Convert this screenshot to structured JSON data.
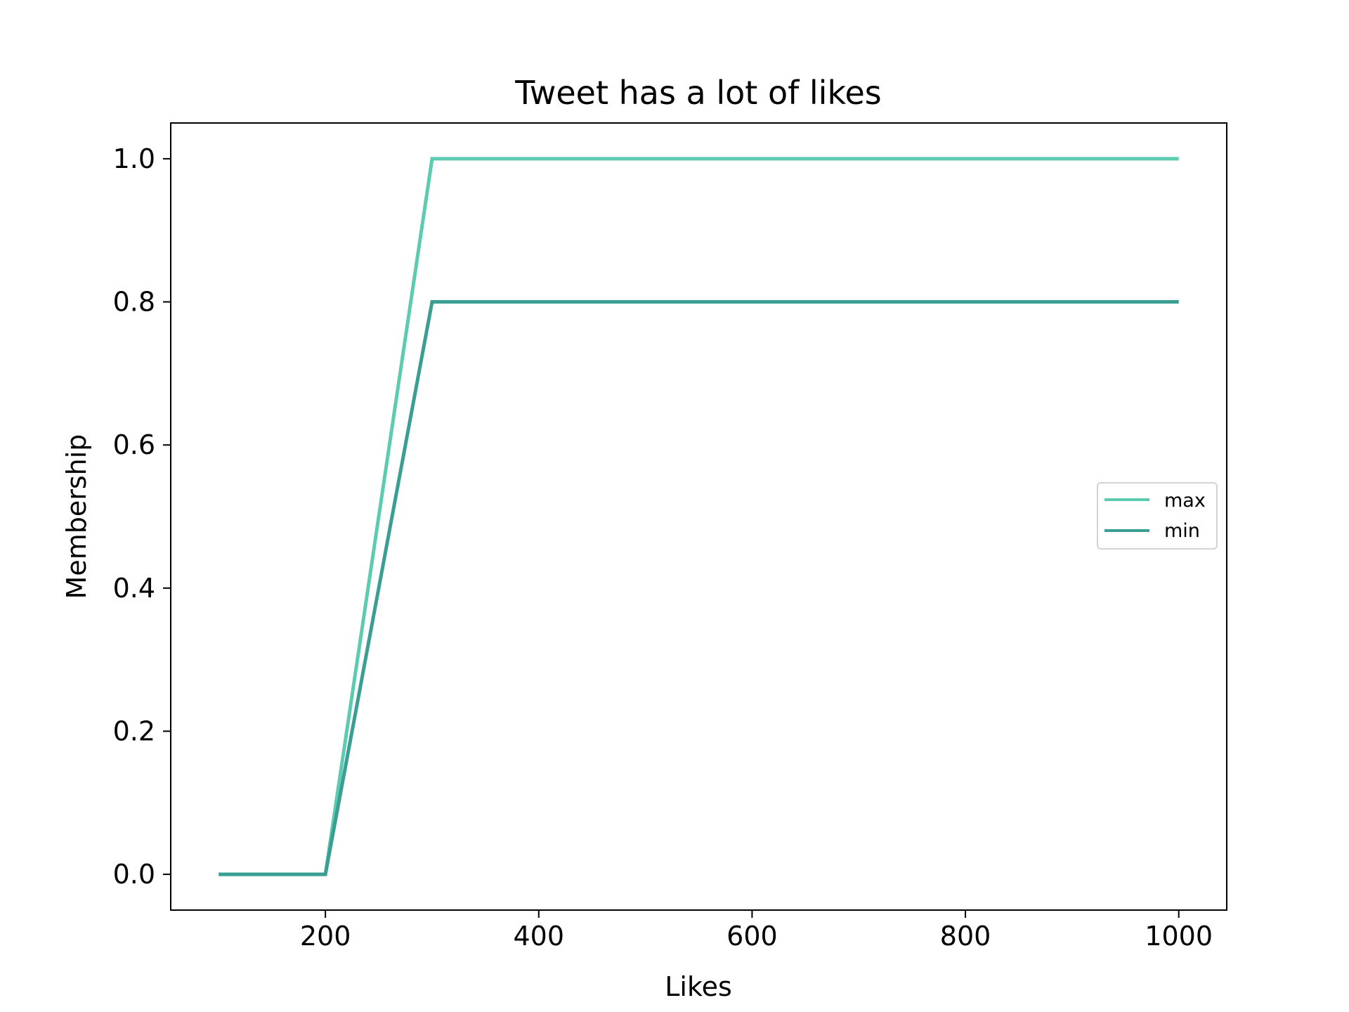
{
  "chart_data": {
    "type": "line",
    "title": "Tweet has a lot of likes",
    "xlabel": "Likes",
    "ylabel": "Membership",
    "xlim": [
      55,
      1045
    ],
    "ylim": [
      -0.05,
      1.05
    ],
    "xticks": [
      200,
      400,
      600,
      800,
      1000
    ],
    "xtick_labels": [
      "200",
      "400",
      "600",
      "800",
      "1000"
    ],
    "yticks": [
      0.0,
      0.2,
      0.4,
      0.6,
      0.8,
      1.0
    ],
    "ytick_labels": [
      "0.0",
      "0.2",
      "0.4",
      "0.6",
      "0.8",
      "1.0"
    ],
    "grid": false,
    "legend_position": "center-right",
    "series": [
      {
        "name": "max",
        "color": "#5ccbb0",
        "x": [
          100,
          200,
          300,
          1000
        ],
        "y": [
          0.0,
          0.0,
          1.0,
          1.0
        ]
      },
      {
        "name": "min",
        "color": "#3a9e92",
        "x": [
          100,
          200,
          300,
          1000
        ],
        "y": [
          0.0,
          0.0,
          0.8,
          0.8
        ]
      }
    ]
  }
}
